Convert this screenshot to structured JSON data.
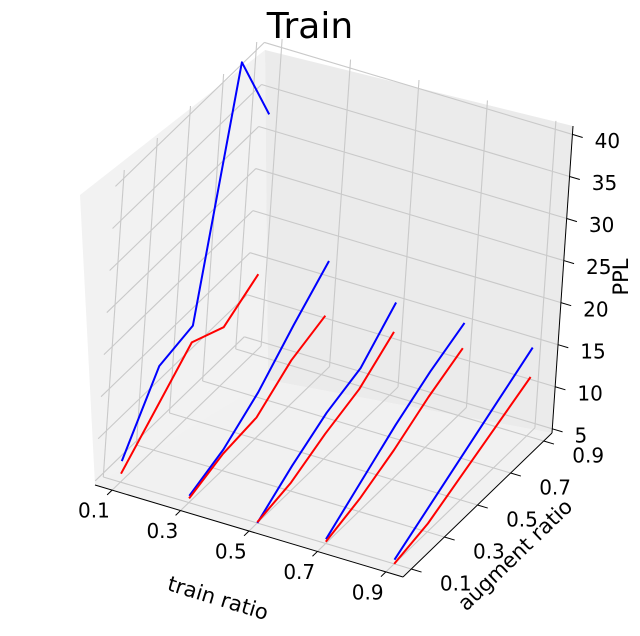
{
  "chart_data": {
    "type": "line3d",
    "title": "Train",
    "xlabel": "train ratio",
    "ylabel": "augment ratio",
    "zlabel": "PPL",
    "x_ticks": [
      "0.1",
      "0.3",
      "0.5",
      "0.7",
      "0.9"
    ],
    "y_ticks": [
      "0.1",
      "0.3",
      "0.5",
      "0.7",
      "0.9"
    ],
    "z_ticks": [
      "5",
      "10",
      "15",
      "20",
      "25",
      "30",
      "35",
      "40"
    ],
    "xlim": [
      0.05,
      0.95
    ],
    "ylim": [
      0.05,
      0.95
    ],
    "zlim": [
      4.5,
      41
    ],
    "grid": true,
    "x": [
      0.1,
      0.3,
      0.5,
      0.7,
      0.9
    ],
    "y": [
      0.1,
      0.3,
      0.5,
      0.7,
      0.9
    ],
    "series": [
      {
        "color": "#0000ff",
        "lines": [
          [
            7.0,
            14.5,
            15.5,
            43.0,
            33.0
          ],
          [
            5.3,
            7.0,
            10.0,
            14.2,
            18.0
          ],
          [
            4.5,
            7.5,
            10.0,
            11.5,
            15.5
          ],
          [
            5.0,
            8.0,
            11.0,
            13.5,
            15.5
          ],
          [
            5.0,
            7.5,
            10.0,
            12.5,
            15.0
          ]
        ]
      },
      {
        "color": "#ff0000",
        "lines": [
          [
            5.5,
            9.5,
            13.5,
            11.5,
            14.0
          ],
          [
            5.0,
            6.5,
            7.0,
            10.0,
            11.5
          ],
          [
            4.6,
            5.5,
            7.5,
            9.0,
            12.0
          ],
          [
            4.7,
            6.0,
            8.0,
            10.5,
            12.5
          ],
          [
            4.5,
            5.5,
            7.5,
            9.5,
            11.5
          ]
        ]
      }
    ]
  }
}
